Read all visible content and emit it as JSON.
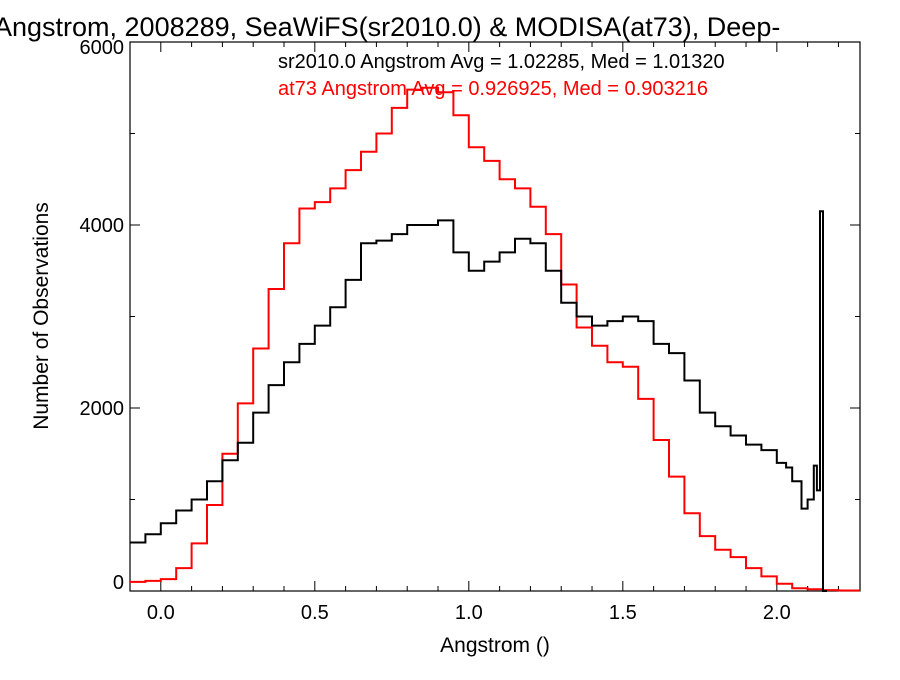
{
  "chart_data": {
    "type": "line",
    "title": "Angstrom, 2008289, SeaWiFS(sr2010.0) & MODISA(at73), Deep-",
    "xlabel": "Angstrom ()",
    "ylabel": "Number of Observations",
    "xlim": [
      -0.1,
      2.27
    ],
    "ylim": [
      0,
      6000
    ],
    "x_ticks": [
      0.0,
      0.5,
      1.0,
      1.5,
      2.0
    ],
    "x_tick_labels": [
      "0.0",
      "0.5",
      "1.0",
      "1.5",
      "2.0"
    ],
    "y_ticks": [
      0,
      2000,
      4000,
      6000
    ],
    "y_tick_labels": [
      "0",
      "2000",
      "4000",
      "6000"
    ],
    "grid": false,
    "step": true,
    "annotations": [
      {
        "text": "sr2010.0 Angstrom Avg = 1.02285, Med = 1.01320",
        "color": "#000000"
      },
      {
        "text": "at73 Angstrom Avg = 0.926925, Med = 0.903216",
        "color": "#ff0000"
      }
    ],
    "series": [
      {
        "name": "sr2010.0",
        "color": "#000000",
        "x": [
          -0.1,
          -0.05,
          0.0,
          0.05,
          0.1,
          0.15,
          0.2,
          0.25,
          0.3,
          0.35,
          0.4,
          0.45,
          0.5,
          0.55,
          0.6,
          0.65,
          0.7,
          0.75,
          0.8,
          0.85,
          0.9,
          0.95,
          1.0,
          1.05,
          1.1,
          1.15,
          1.2,
          1.25,
          1.3,
          1.35,
          1.4,
          1.45,
          1.5,
          1.55,
          1.6,
          1.65,
          1.7,
          1.75,
          1.8,
          1.85,
          1.9,
          1.95,
          2.0,
          2.03,
          2.05,
          2.08,
          2.1,
          2.12,
          2.13,
          2.14,
          2.15
        ],
        "values": [
          530,
          620,
          740,
          880,
          1000,
          1200,
          1430,
          1620,
          1950,
          2250,
          2500,
          2700,
          2900,
          3100,
          3400,
          3800,
          3830,
          3900,
          4000,
          4000,
          4050,
          3700,
          3500,
          3600,
          3700,
          3850,
          3800,
          3500,
          3150,
          3000,
          2900,
          2950,
          3000,
          2950,
          2700,
          2600,
          2300,
          1950,
          1800,
          1700,
          1600,
          1540,
          1400,
          1350,
          1200,
          900,
          1000,
          1370,
          1100,
          4150,
          0
        ]
      },
      {
        "name": "at73",
        "color": "#ff0000",
        "x": [
          -0.1,
          -0.05,
          0.0,
          0.05,
          0.1,
          0.15,
          0.2,
          0.25,
          0.3,
          0.35,
          0.4,
          0.45,
          0.5,
          0.55,
          0.6,
          0.65,
          0.7,
          0.75,
          0.8,
          0.85,
          0.9,
          0.95,
          1.0,
          1.05,
          1.1,
          1.15,
          1.2,
          1.25,
          1.3,
          1.35,
          1.4,
          1.45,
          1.5,
          1.55,
          1.6,
          1.65,
          1.7,
          1.75,
          1.8,
          1.85,
          1.9,
          1.95,
          2.0,
          2.05,
          2.1,
          2.15,
          2.2,
          2.27
        ],
        "values": [
          100,
          110,
          130,
          250,
          520,
          940,
          1500,
          2050,
          2650,
          3300,
          3800,
          4180,
          4250,
          4400,
          4600,
          4800,
          5000,
          5280,
          5480,
          5500,
          5450,
          5200,
          4850,
          4700,
          4500,
          4400,
          4200,
          3900,
          3350,
          2880,
          2680,
          2500,
          2450,
          2100,
          1650,
          1250,
          850,
          600,
          450,
          370,
          250,
          160,
          80,
          30,
          20,
          10,
          5,
          5
        ]
      }
    ]
  }
}
